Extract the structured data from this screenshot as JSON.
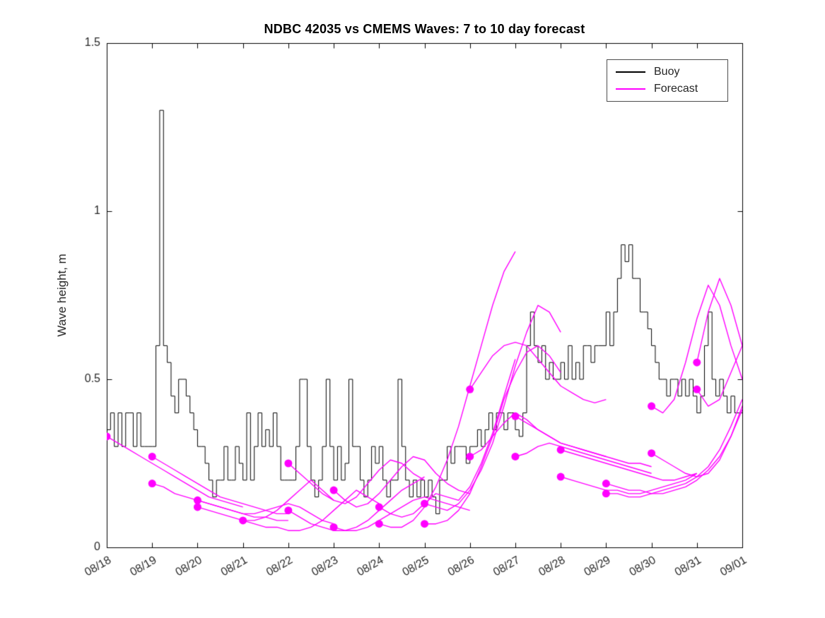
{
  "chart_data": {
    "type": "line",
    "title": "NDBC 42035 vs CMEMS Waves: 7 to 10 day forecast",
    "xlabel": "",
    "ylabel": "Wave height, m",
    "xlim": [
      0,
      14
    ],
    "ylim": [
      0,
      1.5
    ],
    "grid": false,
    "box": true,
    "tick_dir": "in",
    "yticks": [
      0,
      0.5,
      1,
      1.5
    ],
    "ytick_labels": [
      "0",
      "0.5",
      "1",
      "1.5"
    ],
    "xticks": [
      0,
      1,
      2,
      3,
      4,
      5,
      6,
      7,
      8,
      9,
      10,
      11,
      12,
      13,
      14
    ],
    "xtick_labels": [
      "08/18",
      "08/19",
      "08/20",
      "08/21",
      "08/22",
      "08/23",
      "08/24",
      "08/25",
      "08/26",
      "08/27",
      "08/28",
      "08/29",
      "08/30",
      "08/31",
      "09/01"
    ],
    "xtick_angle_deg": 30,
    "legend": {
      "position": "northeast",
      "items": [
        {
          "label": "Buoy",
          "color": "#000000"
        },
        {
          "label": "Forecast",
          "color": "#ff00ff"
        }
      ]
    },
    "series": {
      "buoy": {
        "name": "Buoy",
        "color": "#000000",
        "style": "step",
        "x0": 0,
        "dx": 0.0833333,
        "values": [
          0.35,
          0.4,
          0.3,
          0.4,
          0.3,
          0.4,
          0.4,
          0.3,
          0.4,
          0.3,
          0.3,
          0.3,
          0.3,
          0.6,
          1.3,
          0.6,
          0.55,
          0.45,
          0.4,
          0.5,
          0.5,
          0.45,
          0.4,
          0.35,
          0.3,
          0.3,
          0.25,
          0.2,
          0.15,
          0.2,
          0.2,
          0.3,
          0.2,
          0.2,
          0.3,
          0.25,
          0.2,
          0.4,
          0.2,
          0.3,
          0.4,
          0.3,
          0.35,
          0.3,
          0.4,
          0.3,
          0.2,
          0.2,
          0.2,
          0.2,
          0.3,
          0.5,
          0.5,
          0.3,
          0.2,
          0.15,
          0.2,
          0.3,
          0.5,
          0.3,
          0.2,
          0.3,
          0.2,
          0.25,
          0.5,
          0.3,
          0.3,
          0.2,
          0.15,
          0.2,
          0.3,
          0.25,
          0.3,
          0.2,
          0.15,
          0.2,
          0.2,
          0.5,
          0.3,
          0.2,
          0.15,
          0.2,
          0.15,
          0.2,
          0.15,
          0.2,
          0.15,
          0.1,
          0.2,
          0.2,
          0.3,
          0.25,
          0.3,
          0.3,
          0.3,
          0.25,
          0.3,
          0.3,
          0.35,
          0.3,
          0.35,
          0.4,
          0.35,
          0.4,
          0.4,
          0.35,
          0.4,
          0.4,
          0.35,
          0.33,
          0.4,
          0.6,
          0.7,
          0.6,
          0.55,
          0.6,
          0.5,
          0.55,
          0.5,
          0.5,
          0.55,
          0.5,
          0.6,
          0.5,
          0.55,
          0.5,
          0.6,
          0.6,
          0.55,
          0.6,
          0.6,
          0.6,
          0.7,
          0.6,
          0.7,
          0.8,
          0.9,
          0.85,
          0.9,
          0.8,
          0.8,
          0.7,
          0.7,
          0.65,
          0.6,
          0.55,
          0.5,
          0.5,
          0.45,
          0.5,
          0.5,
          0.45,
          0.5,
          0.45,
          0.5,
          0.45,
          0.4,
          0.45,
          0.6,
          0.7,
          0.5,
          0.45,
          0.5,
          0.45,
          0.4,
          0.45,
          0.4,
          0.4,
          0.4
        ]
      },
      "forecast": {
        "name": "Forecast",
        "color": "#ff00ff",
        "marker": "filled-circle",
        "marker_radius_px": 5.5,
        "dx": 0.25,
        "runs": [
          {
            "x0": 0,
            "values": [
              0.33,
              0.31,
              0.29,
              0.27,
              0.25,
              0.23,
              0.21,
              0.19,
              0.17,
              0.15,
              0.14,
              0.13,
              0.12
            ]
          },
          {
            "x0": 1,
            "values": [
              0.27,
              0.25,
              0.23,
              0.21,
              0.19,
              0.17,
              0.15,
              0.14,
              0.13,
              0.12,
              0.11,
              0.1,
              0.1
            ]
          },
          {
            "x0": 1,
            "values": [
              0.19,
              0.18,
              0.16,
              0.15,
              0.14,
              0.13,
              0.12,
              0.11,
              0.1,
              0.09,
              0.09,
              0.08,
              0.08
            ]
          },
          {
            "x0": 2,
            "values": [
              0.14,
              0.13,
              0.12,
              0.11,
              0.1,
              0.1,
              0.11,
              0.12,
              0.13,
              0.12,
              0.1,
              0.08,
              0.07
            ]
          },
          {
            "x0": 2,
            "values": [
              0.12,
              0.11,
              0.1,
              0.09,
              0.08,
              0.08,
              0.09,
              0.11,
              0.14,
              0.17,
              0.2,
              0.17,
              0.14
            ]
          },
          {
            "x0": 3,
            "values": [
              0.08,
              0.07,
              0.06,
              0.06,
              0.05,
              0.05,
              0.06,
              0.08,
              0.11,
              0.14,
              0.17,
              0.15,
              0.13
            ]
          },
          {
            "x0": 4,
            "values": [
              0.25,
              0.22,
              0.19,
              0.16,
              0.14,
              0.13,
              0.15,
              0.19,
              0.23,
              0.26,
              0.25,
              0.22,
              0.2
            ]
          },
          {
            "x0": 4,
            "values": [
              0.11,
              0.09,
              0.07,
              0.06,
              0.05,
              0.05,
              0.06,
              0.08,
              0.11,
              0.14,
              0.17,
              0.19,
              0.21
            ]
          },
          {
            "x0": 5,
            "values": [
              0.17,
              0.14,
              0.12,
              0.13,
              0.16,
              0.2,
              0.24,
              0.27,
              0.26,
              0.22,
              0.19,
              0.17,
              0.16
            ]
          },
          {
            "x0": 5,
            "values": [
              0.06,
              0.05,
              0.05,
              0.06,
              0.08,
              0.1,
              0.12,
              0.14,
              0.15,
              0.14,
              0.13,
              0.12,
              0.11
            ]
          },
          {
            "x0": 6,
            "values": [
              0.07,
              0.06,
              0.06,
              0.08,
              0.12,
              0.18,
              0.26,
              0.36,
              0.48,
              0.6,
              0.72,
              0.82,
              0.88
            ]
          },
          {
            "x0": 6,
            "values": [
              0.12,
              0.1,
              0.09,
              0.1,
              0.13,
              0.16,
              0.15,
              0.14,
              0.18,
              0.25,
              0.34,
              0.45,
              0.56
            ]
          },
          {
            "x0": 7,
            "values": [
              0.13,
              0.12,
              0.11,
              0.13,
              0.17,
              0.23,
              0.31,
              0.42,
              0.54,
              0.64,
              0.72,
              0.7,
              0.64
            ]
          },
          {
            "x0": 7,
            "values": [
              0.07,
              0.07,
              0.08,
              0.11,
              0.16,
              0.24,
              0.33,
              0.44,
              0.52,
              0.58,
              0.6,
              0.57,
              0.52
            ]
          },
          {
            "x0": 8,
            "values": [
              0.47,
              0.52,
              0.57,
              0.6,
              0.61,
              0.6,
              0.56,
              0.52,
              0.48,
              0.46,
              0.44,
              0.43,
              0.44
            ]
          },
          {
            "x0": 8,
            "values": [
              0.27,
              0.29,
              0.33,
              0.37,
              0.4,
              0.38,
              0.35,
              0.33,
              0.31,
              0.3,
              0.29,
              0.28,
              0.27
            ]
          },
          {
            "x0": 9,
            "values": [
              0.39,
              0.37,
              0.35,
              0.33,
              0.31,
              0.3,
              0.29,
              0.28,
              0.27,
              0.26,
              0.25,
              0.25,
              0.24
            ]
          },
          {
            "x0": 9,
            "values": [
              0.27,
              0.28,
              0.3,
              0.31,
              0.3,
              0.29,
              0.28,
              0.27,
              0.26,
              0.25,
              0.24,
              0.23,
              0.22
            ]
          },
          {
            "x0": 10,
            "values": [
              0.29,
              0.28,
              0.27,
              0.26,
              0.25,
              0.24,
              0.23,
              0.22,
              0.21,
              0.2,
              0.2,
              0.21,
              0.22
            ]
          },
          {
            "x0": 10,
            "values": [
              0.21,
              0.2,
              0.19,
              0.18,
              0.17,
              0.17,
              0.16,
              0.16,
              0.17,
              0.18,
              0.19,
              0.2,
              0.22
            ]
          },
          {
            "x0": 11,
            "values": [
              0.19,
              0.18,
              0.17,
              0.17,
              0.16,
              0.16,
              0.17,
              0.18,
              0.2,
              0.23,
              0.27,
              0.33,
              0.41
            ]
          },
          {
            "x0": 11,
            "values": [
              0.16,
              0.16,
              0.15,
              0.15,
              0.16,
              0.17,
              0.18,
              0.19,
              0.21,
              0.24,
              0.29,
              0.36,
              0.44
            ]
          },
          {
            "x0": 12,
            "values": [
              0.42,
              0.4,
              0.44,
              0.55,
              0.68,
              0.78,
              0.72,
              0.6,
              0.5,
              0.44,
              0.42,
              0.41,
              0.4
            ]
          },
          {
            "x0": 12,
            "values": [
              0.28,
              0.26,
              0.24,
              0.22,
              0.21,
              0.22,
              0.26,
              0.33,
              0.42,
              0.52,
              0.6,
              0.62,
              0.6
            ]
          },
          {
            "x0": 13,
            "values": [
              0.55,
              0.7,
              0.8,
              0.72,
              0.6,
              0.48,
              0.44,
              0.42,
              0.41,
              0.4,
              0.4,
              0.4,
              0.4
            ]
          },
          {
            "x0": 13,
            "values": [
              0.47,
              0.42,
              0.44,
              0.52,
              0.6,
              0.62,
              0.58,
              0.52,
              0.48,
              0.46,
              0.45,
              0.44,
              0.44
            ]
          }
        ]
      }
    }
  }
}
